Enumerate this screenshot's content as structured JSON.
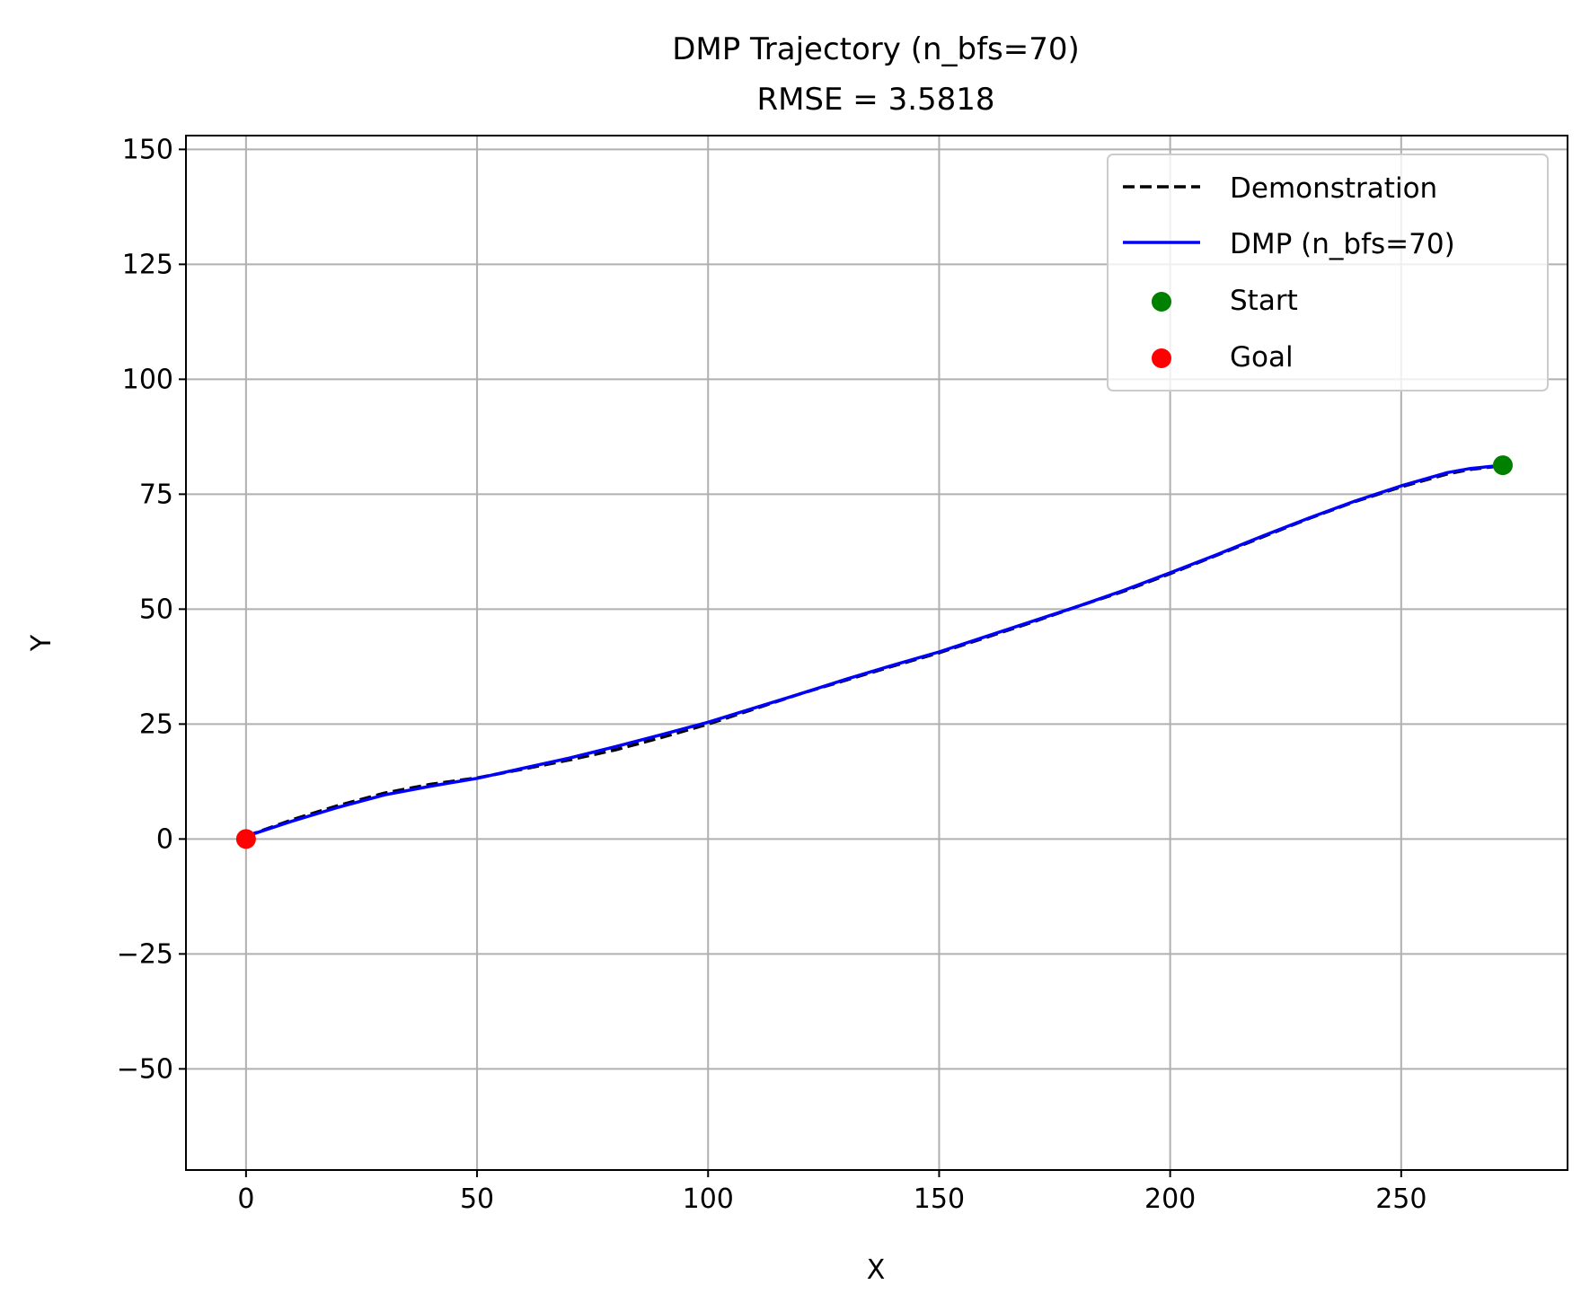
{
  "chart_data": {
    "type": "line",
    "title": "DMP Trajectory (n_bfs=70)",
    "subtitle": "RMSE = 3.5818",
    "xlabel": "X",
    "ylabel": "Y",
    "xlim": [
      -13,
      286
    ],
    "ylim": [
      -72,
      153
    ],
    "xticks": [
      0,
      50,
      100,
      150,
      200,
      250
    ],
    "xtick_labels": [
      "0",
      "50",
      "100",
      "150",
      "200",
      "250"
    ],
    "yticks": [
      -50,
      -25,
      0,
      25,
      50,
      75,
      100,
      125,
      150
    ],
    "ytick_labels": [
      "−50",
      "−25",
      "0",
      "25",
      "50",
      "75",
      "100",
      "125",
      "150"
    ],
    "grid": true,
    "legend_position": "top-right",
    "series": [
      {
        "name": "Demonstration",
        "style": "dashed",
        "color": "#000000",
        "x": [
          0,
          10,
          20,
          30,
          40,
          50,
          60,
          70,
          80,
          90,
          100,
          110,
          120,
          130,
          140,
          150,
          160,
          170,
          180,
          190,
          200,
          210,
          220,
          230,
          240,
          250,
          260,
          265,
          272
        ],
        "y": [
          0.6,
          4.2,
          7.3,
          10.0,
          11.9,
          13.3,
          15.2,
          17.2,
          19.4,
          22.1,
          25.0,
          28.3,
          31.6,
          34.6,
          37.6,
          40.5,
          43.8,
          47.1,
          50.6,
          53.9,
          57.7,
          61.7,
          65.7,
          69.7,
          73.4,
          76.6,
          79.4,
          80.4,
          81.2
        ]
      },
      {
        "name": "DMP (n_bfs=70)",
        "style": "solid",
        "color": "#0000ff",
        "x": [
          0,
          10,
          20,
          30,
          40,
          50,
          60,
          70,
          80,
          90,
          100,
          110,
          120,
          130,
          140,
          150,
          160,
          170,
          180,
          190,
          200,
          210,
          220,
          230,
          240,
          250,
          260,
          265,
          272
        ],
        "y": [
          0.6,
          3.9,
          6.9,
          9.6,
          11.5,
          13.2,
          15.4,
          17.6,
          20.1,
          22.7,
          25.4,
          28.5,
          31.6,
          34.8,
          37.8,
          40.7,
          44.0,
          47.3,
          50.6,
          54.1,
          57.9,
          61.8,
          65.9,
          69.8,
          73.5,
          76.8,
          79.7,
          80.6,
          81.3
        ]
      }
    ],
    "points": [
      {
        "name": "Start",
        "x": 272,
        "y": 81.3,
        "color": "#008000"
      },
      {
        "name": "Goal",
        "x": 0,
        "y": 0,
        "color": "#ff0000"
      }
    ]
  }
}
